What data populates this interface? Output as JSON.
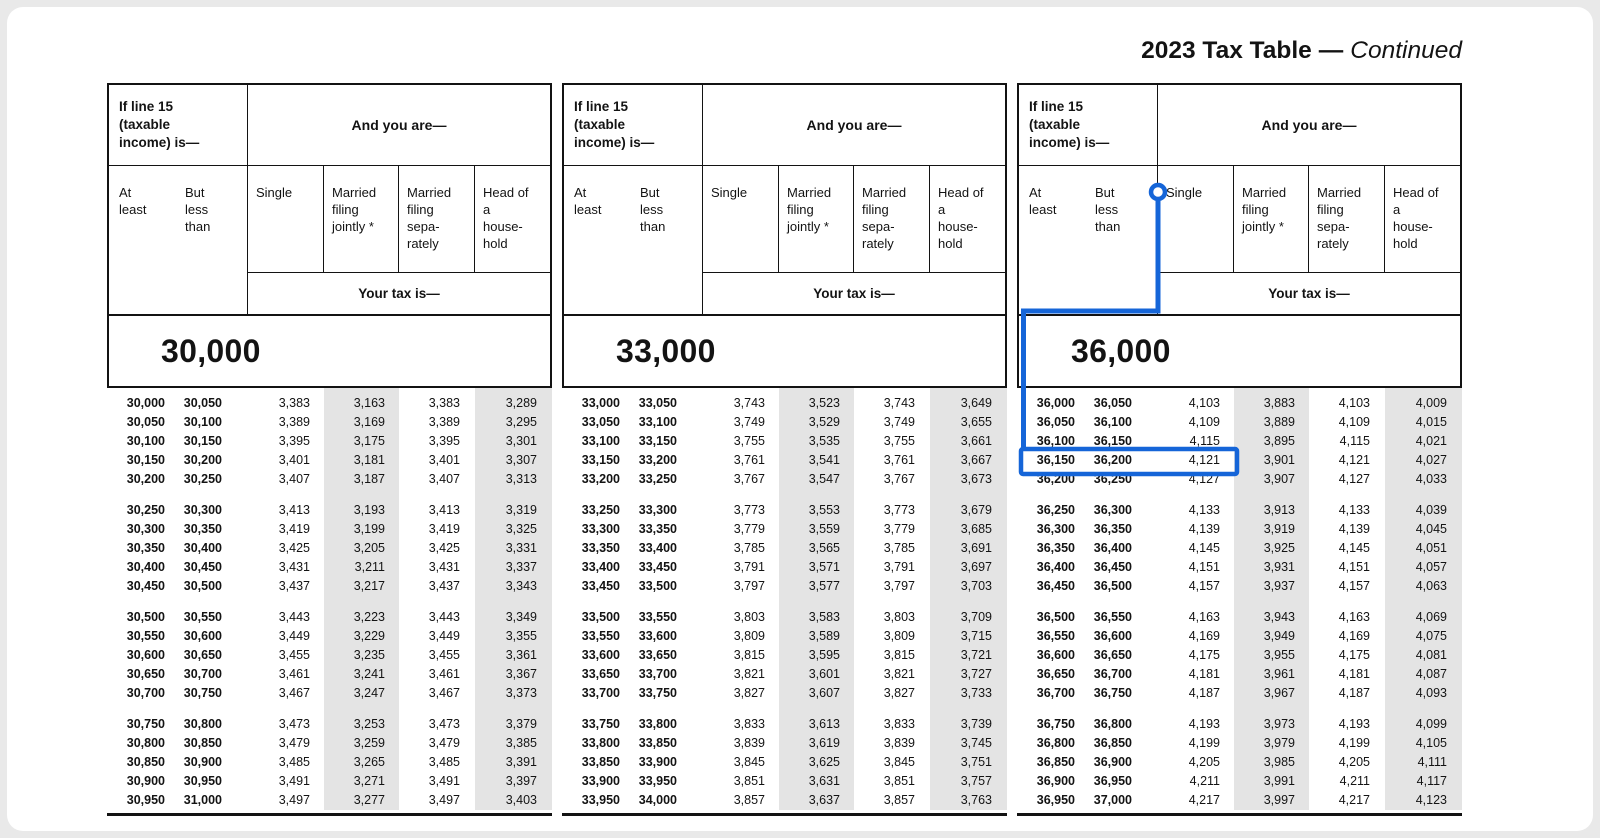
{
  "title": {
    "main": "2023 Tax Table",
    "dash": "—",
    "continued": "Continued"
  },
  "panel_header": {
    "income_label": "If line 15\n(taxable\nincome) is—",
    "and_you_are": "And you are—",
    "at_least": "At\nleast",
    "but_less_than": "But\nless\nthan",
    "single": "Single",
    "married_filing_jointly": "Married\nfiling\njointly *",
    "married_filing_separately": "Married\nfiling\nsepa-\nrately",
    "head_of_household": "Head of\na\nhouse-\nhold",
    "your_tax_is": "Your tax is—"
  },
  "columns": [
    "At least",
    "But less than",
    "Single",
    "Married filing jointly *",
    "Married filing separately",
    "Head of a household"
  ],
  "panels": [
    {
      "section": "30,000",
      "groups": [
        [
          [
            "30,000",
            "30,050",
            "3,383",
            "3,163",
            "3,383",
            "3,289"
          ],
          [
            "30,050",
            "30,100",
            "3,389",
            "3,169",
            "3,389",
            "3,295"
          ],
          [
            "30,100",
            "30,150",
            "3,395",
            "3,175",
            "3,395",
            "3,301"
          ],
          [
            "30,150",
            "30,200",
            "3,401",
            "3,181",
            "3,401",
            "3,307"
          ],
          [
            "30,200",
            "30,250",
            "3,407",
            "3,187",
            "3,407",
            "3,313"
          ]
        ],
        [
          [
            "30,250",
            "30,300",
            "3,413",
            "3,193",
            "3,413",
            "3,319"
          ],
          [
            "30,300",
            "30,350",
            "3,419",
            "3,199",
            "3,419",
            "3,325"
          ],
          [
            "30,350",
            "30,400",
            "3,425",
            "3,205",
            "3,425",
            "3,331"
          ],
          [
            "30,400",
            "30,450",
            "3,431",
            "3,211",
            "3,431",
            "3,337"
          ],
          [
            "30,450",
            "30,500",
            "3,437",
            "3,217",
            "3,437",
            "3,343"
          ]
        ],
        [
          [
            "30,500",
            "30,550",
            "3,443",
            "3,223",
            "3,443",
            "3,349"
          ],
          [
            "30,550",
            "30,600",
            "3,449",
            "3,229",
            "3,449",
            "3,355"
          ],
          [
            "30,600",
            "30,650",
            "3,455",
            "3,235",
            "3,455",
            "3,361"
          ],
          [
            "30,650",
            "30,700",
            "3,461",
            "3,241",
            "3,461",
            "3,367"
          ],
          [
            "30,700",
            "30,750",
            "3,467",
            "3,247",
            "3,467",
            "3,373"
          ]
        ],
        [
          [
            "30,750",
            "30,800",
            "3,473",
            "3,253",
            "3,473",
            "3,379"
          ],
          [
            "30,800",
            "30,850",
            "3,479",
            "3,259",
            "3,479",
            "3,385"
          ],
          [
            "30,850",
            "30,900",
            "3,485",
            "3,265",
            "3,485",
            "3,391"
          ],
          [
            "30,900",
            "30,950",
            "3,491",
            "3,271",
            "3,491",
            "3,397"
          ],
          [
            "30,950",
            "31,000",
            "3,497",
            "3,277",
            "3,497",
            "3,403"
          ]
        ]
      ]
    },
    {
      "section": "33,000",
      "groups": [
        [
          [
            "33,000",
            "33,050",
            "3,743",
            "3,523",
            "3,743",
            "3,649"
          ],
          [
            "33,050",
            "33,100",
            "3,749",
            "3,529",
            "3,749",
            "3,655"
          ],
          [
            "33,100",
            "33,150",
            "3,755",
            "3,535",
            "3,755",
            "3,661"
          ],
          [
            "33,150",
            "33,200",
            "3,761",
            "3,541",
            "3,761",
            "3,667"
          ],
          [
            "33,200",
            "33,250",
            "3,767",
            "3,547",
            "3,767",
            "3,673"
          ]
        ],
        [
          [
            "33,250",
            "33,300",
            "3,773",
            "3,553",
            "3,773",
            "3,679"
          ],
          [
            "33,300",
            "33,350",
            "3,779",
            "3,559",
            "3,779",
            "3,685"
          ],
          [
            "33,350",
            "33,400",
            "3,785",
            "3,565",
            "3,785",
            "3,691"
          ],
          [
            "33,400",
            "33,450",
            "3,791",
            "3,571",
            "3,791",
            "3,697"
          ],
          [
            "33,450",
            "33,500",
            "3,797",
            "3,577",
            "3,797",
            "3,703"
          ]
        ],
        [
          [
            "33,500",
            "33,550",
            "3,803",
            "3,583",
            "3,803",
            "3,709"
          ],
          [
            "33,550",
            "33,600",
            "3,809",
            "3,589",
            "3,809",
            "3,715"
          ],
          [
            "33,600",
            "33,650",
            "3,815",
            "3,595",
            "3,815",
            "3,721"
          ],
          [
            "33,650",
            "33,700",
            "3,821",
            "3,601",
            "3,821",
            "3,727"
          ],
          [
            "33,700",
            "33,750",
            "3,827",
            "3,607",
            "3,827",
            "3,733"
          ]
        ],
        [
          [
            "33,750",
            "33,800",
            "3,833",
            "3,613",
            "3,833",
            "3,739"
          ],
          [
            "33,800",
            "33,850",
            "3,839",
            "3,619",
            "3,839",
            "3,745"
          ],
          [
            "33,850",
            "33,900",
            "3,845",
            "3,625",
            "3,845",
            "3,751"
          ],
          [
            "33,900",
            "33,950",
            "3,851",
            "3,631",
            "3,851",
            "3,757"
          ],
          [
            "33,950",
            "34,000",
            "3,857",
            "3,637",
            "3,857",
            "3,763"
          ]
        ]
      ]
    },
    {
      "section": "36,000",
      "groups": [
        [
          [
            "36,000",
            "36,050",
            "4,103",
            "3,883",
            "4,103",
            "4,009"
          ],
          [
            "36,050",
            "36,100",
            "4,109",
            "3,889",
            "4,109",
            "4,015"
          ],
          [
            "36,100",
            "36,150",
            "4,115",
            "3,895",
            "4,115",
            "4,021"
          ],
          [
            "36,150",
            "36,200",
            "4,121",
            "3,901",
            "4,121",
            "4,027"
          ],
          [
            "36,200",
            "36,250",
            "4,127",
            "3,907",
            "4,127",
            "4,033"
          ]
        ],
        [
          [
            "36,250",
            "36,300",
            "4,133",
            "3,913",
            "4,133",
            "4,039"
          ],
          [
            "36,300",
            "36,350",
            "4,139",
            "3,919",
            "4,139",
            "4,045"
          ],
          [
            "36,350",
            "36,400",
            "4,145",
            "3,925",
            "4,145",
            "4,051"
          ],
          [
            "36,400",
            "36,450",
            "4,151",
            "3,931",
            "4,151",
            "4,057"
          ],
          [
            "36,450",
            "36,500",
            "4,157",
            "3,937",
            "4,157",
            "4,063"
          ]
        ],
        [
          [
            "36,500",
            "36,550",
            "4,163",
            "3,943",
            "4,163",
            "4,069"
          ],
          [
            "36,550",
            "36,600",
            "4,169",
            "3,949",
            "4,169",
            "4,075"
          ],
          [
            "36,600",
            "36,650",
            "4,175",
            "3,955",
            "4,175",
            "4,081"
          ],
          [
            "36,650",
            "36,700",
            "4,181",
            "3,961",
            "4,181",
            "4,087"
          ],
          [
            "36,700",
            "36,750",
            "4,187",
            "3,967",
            "4,187",
            "4,093"
          ]
        ],
        [
          [
            "36,750",
            "36,800",
            "4,193",
            "3,973",
            "4,193",
            "4,099"
          ],
          [
            "36,800",
            "36,850",
            "4,199",
            "3,979",
            "4,199",
            "4,105"
          ],
          [
            "36,850",
            "36,900",
            "4,205",
            "3,985",
            "4,205",
            "4,111"
          ],
          [
            "36,900",
            "36,950",
            "4,211",
            "3,991",
            "4,211",
            "4,117"
          ],
          [
            "36,950",
            "37,000",
            "4,217",
            "3,997",
            "4,217",
            "4,123"
          ]
        ]
      ]
    }
  ],
  "annotation": {
    "color": "#1565d8",
    "marker_column": "Single",
    "description": "Callout ring on the Single column header connected to a box around the highlighted row",
    "highlighted_row": {
      "at_least": "36,150",
      "but_less_than": "36,200",
      "single_tax": "4,121"
    }
  }
}
